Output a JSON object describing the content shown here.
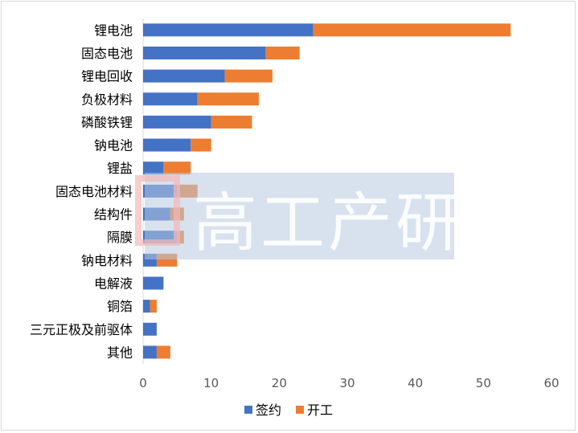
{
  "chart_data": {
    "type": "bar",
    "orientation": "horizontal",
    "stacked": true,
    "categories": [
      "锂电池",
      "固态电池",
      "锂电回收",
      "负极材料",
      "磷酸铁锂",
      "钠电池",
      "锂盐",
      "固态电池材料",
      "结构件",
      "隔膜",
      "钠电材料",
      "电解液",
      "铜箔",
      "三元正极及前驱体",
      "其他"
    ],
    "series": [
      {
        "name": "签约",
        "color": "#4472c4",
        "values": [
          25,
          18,
          12,
          8,
          10,
          7,
          3,
          5,
          4,
          5,
          2,
          3,
          1,
          2,
          2
        ]
      },
      {
        "name": "开工",
        "color": "#ed7d31",
        "values": [
          29,
          5,
          7,
          9,
          6,
          3,
          4,
          3,
          2,
          1,
          3,
          0,
          1,
          0,
          2
        ]
      }
    ],
    "xlim": [
      0,
      60
    ],
    "xticks": [
      0,
      10,
      20,
      30,
      40,
      50,
      60
    ],
    "grid": false,
    "legend_position": "bottom",
    "watermark": "高工产研"
  }
}
